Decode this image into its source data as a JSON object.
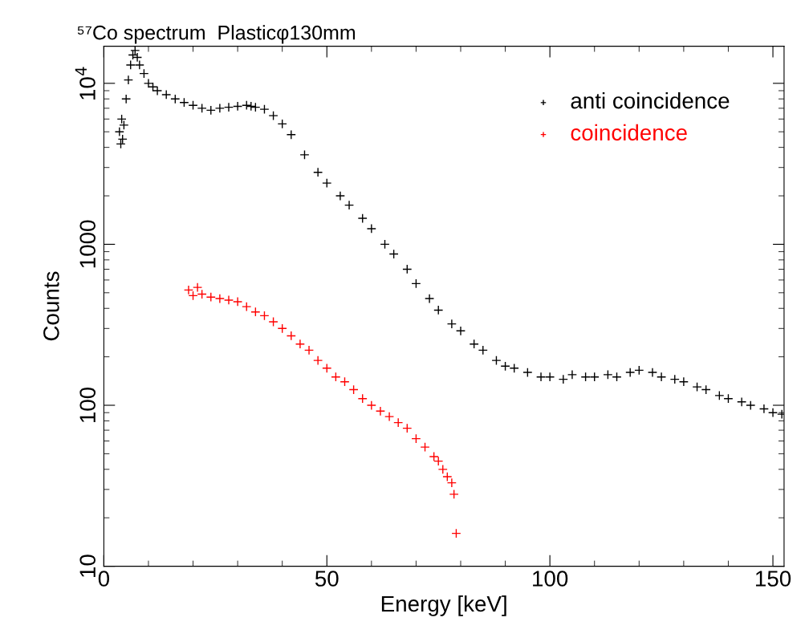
{
  "chart_data": {
    "type": "scatter",
    "title": "⁵⁷Co spectrum  Plasticφ130mm",
    "xlabel": "Energy [keV]",
    "ylabel": "Counts",
    "log": "y",
    "marker": "cross",
    "grid": false,
    "legend": "top right",
    "xlim": [
      0,
      152.5
    ],
    "xticks": [
      0,
      50,
      100,
      150
    ],
    "ylim": [
      10,
      17000
    ],
    "yticks": [
      10,
      100,
      1000,
      {
        "value": 10000,
        "label": "10$^{4}$"
      }
    ],
    "series": [
      {
        "name": "anti coincidence",
        "color": "#000000",
        "x": [
          3.5,
          3.8,
          4.0,
          4.2,
          4.5,
          5.0,
          5.5,
          6.0,
          6.5,
          7.0,
          7.5,
          8.0,
          9.0,
          10.0,
          11.0,
          12.0,
          14.0,
          16.0,
          18.0,
          20.0,
          22.0,
          24.0,
          26.0,
          28.0,
          30.0,
          32.0,
          33.0,
          34.0,
          36.0,
          38.0,
          40.0,
          42.0,
          45.0,
          48.0,
          50.0,
          53.0,
          55.0,
          58.0,
          60.0,
          63.0,
          65.0,
          68.0,
          70.0,
          73.0,
          75.0,
          78.0,
          80.0,
          83.0,
          85.0,
          88.0,
          90.0,
          92.0,
          95.0,
          98.0,
          100.0,
          103.0,
          105.0,
          108.0,
          110.0,
          113.0,
          115.0,
          118.0,
          120.0,
          123.0,
          125.0,
          128.0,
          130.0,
          133.0,
          135.0,
          138.0,
          140.0,
          143.0,
          145.0,
          148.0,
          150.0,
          152.0
        ],
        "values": [
          5000,
          4200,
          6000,
          4500,
          5500,
          8000,
          10500,
          13000,
          15000,
          16000,
          14500,
          13000,
          11500,
          10000,
          9500,
          9000,
          8500,
          8000,
          7600,
          7300,
          7000,
          6800,
          7000,
          7100,
          7200,
          7300,
          7200,
          7100,
          6900,
          6300,
          5600,
          4800,
          3600,
          2800,
          2400,
          2000,
          1750,
          1450,
          1250,
          1000,
          870,
          700,
          570,
          460,
          390,
          320,
          290,
          240,
          220,
          190,
          175,
          170,
          160,
          150,
          150,
          145,
          155,
          150,
          150,
          155,
          150,
          160,
          165,
          160,
          150,
          145,
          140,
          130,
          125,
          115,
          110,
          105,
          100,
          95,
          90,
          88
        ]
      },
      {
        "name": "coincidence",
        "color": "#ff0000",
        "x": [
          19.0,
          20.0,
          21.0,
          22.0,
          24.0,
          26.0,
          28.0,
          30.0,
          32.0,
          34.0,
          36.0,
          38.0,
          40.0,
          42.0,
          44.0,
          46.0,
          48.0,
          50.0,
          52.0,
          54.0,
          56.0,
          58.0,
          60.0,
          62.0,
          64.0,
          66.0,
          68.0,
          70.0,
          72.0,
          74.0,
          75.0,
          76.0,
          77.0,
          78.0,
          78.5,
          79.0
        ],
        "values": [
          520,
          480,
          540,
          490,
          470,
          460,
          450,
          440,
          410,
          380,
          360,
          330,
          300,
          270,
          240,
          220,
          190,
          170,
          150,
          140,
          125,
          110,
          100,
          92,
          85,
          78,
          72,
          62,
          55,
          48,
          45,
          40,
          36,
          33,
          28,
          16
        ]
      }
    ]
  }
}
